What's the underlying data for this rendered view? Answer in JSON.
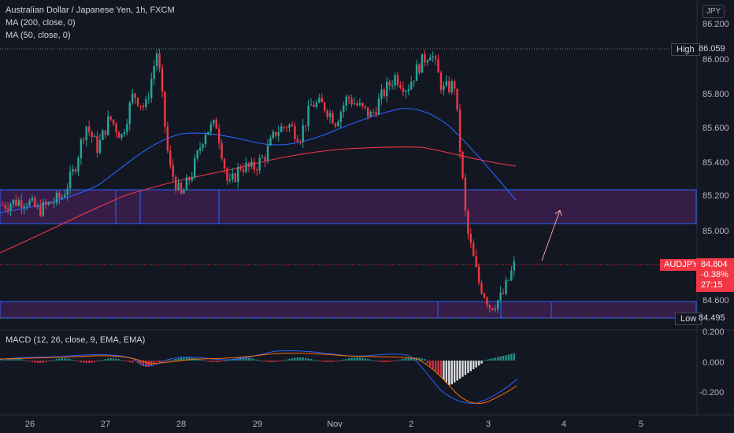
{
  "legend": {
    "title": "Australian Dollar / Japanese Yen, 1h, FXCM",
    "ma200": "MA (200, close, 0)",
    "ma50": "MA (50, close, 0)",
    "macd": "MACD (12, 26, close, 9, EMA, EMA)"
  },
  "currency_button": "JPY",
  "price_axis": {
    "ticks": [
      "86.200",
      "86.000",
      "85.800",
      "85.600",
      "85.400",
      "85.200",
      "85.000",
      "84.600"
    ],
    "high_label": "High",
    "high_value": "86.059",
    "low_label": "Low",
    "low_value": "84.495",
    "symbol": "AUDJPY",
    "current_price": "84.804",
    "change": "-0.38%",
    "countdown": "27:15"
  },
  "macd_axis": {
    "ticks": [
      "0.200",
      "0.000",
      "-0.200"
    ]
  },
  "time_axis": {
    "labels": [
      "26",
      "27",
      "28",
      "29",
      "Nov",
      "2",
      "3",
      "4",
      "5"
    ]
  },
  "colors": {
    "bull": "#26a69a",
    "bear": "#f23645",
    "ma200": "#f23645",
    "ma50": "#2962ff",
    "zone_fill": "#3d1f4f",
    "zone_border": "#2962ff",
    "macd_line": "#2962ff",
    "signal_line": "#ff6d00",
    "arrow": "#f7a6a6"
  },
  "chart_data": {
    "type": "candlestick",
    "price_range": [
      84.48,
      86.2
    ],
    "zones": [
      {
        "top": 85.24,
        "bottom": 85.04
      },
      {
        "top": 84.59,
        "bottom": 84.49
      }
    ],
    "high": 86.059,
    "low": 84.495,
    "current": 84.804,
    "path": [
      85.15,
      85.17,
      85.18,
      85.12,
      85.16,
      85.2,
      85.35,
      85.62,
      85.48,
      85.66,
      85.55,
      85.8,
      85.71,
      86.05,
      85.38,
      85.2,
      85.35,
      85.58,
      85.62,
      85.25,
      85.38,
      85.36,
      85.43,
      85.58,
      85.62,
      85.55,
      85.74,
      85.73,
      85.64,
      85.78,
      85.72,
      85.67,
      85.8,
      85.9,
      85.83,
      85.96,
      86.05,
      85.82,
      85.85,
      85.02,
      84.71,
      84.56,
      84.62,
      84.8
    ]
  }
}
